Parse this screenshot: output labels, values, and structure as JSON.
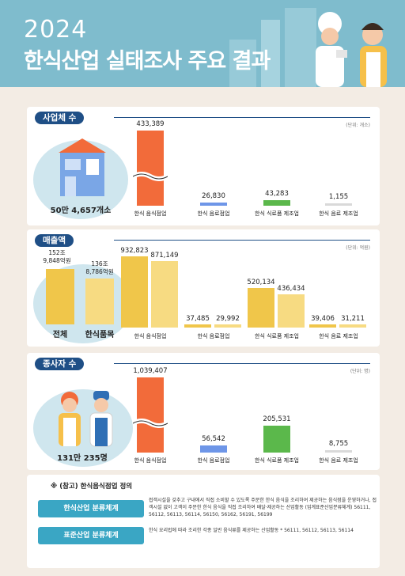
{
  "header": {
    "year": "2024",
    "title": "한식산업 실태조사 주요 결과"
  },
  "colors": {
    "header_bg": "#7fbccd",
    "section_blue": "#1f4f86",
    "bar_restaurant": "#f26b3a",
    "bar_beverage": "#6e96e8",
    "bar_manufacture": "#5bb84b",
    "bar_drink_mfg": "#d9d9d9",
    "sales_total": "#f0c64a",
    "sales_hansik": "#f7db82"
  },
  "chart_data": [
    {
      "type": "bar",
      "title": "사업체 수",
      "unit": "(단위: 개소)",
      "total": "50만 4,657개소",
      "categories": [
        "한식 음식점업",
        "한식 음료점업",
        "한식 식료품 제조업",
        "한식 음료 제조업"
      ],
      "values": [
        433389,
        26830,
        43283,
        1155
      ],
      "value_labels": [
        "433,389",
        "26,830",
        "43,283",
        "1,155"
      ],
      "broken_axis": true
    },
    {
      "type": "bar",
      "title": "매출액",
      "unit": "(단위: 억원)",
      "totals": [
        {
          "label": "전체",
          "value_line1": "152조",
          "value_line2": "9,848억원"
        },
        {
          "label": "한식품목",
          "value_line1": "136조",
          "value_line2": "8,786억원"
        }
      ],
      "categories": [
        "한식 음식점업",
        "한식 음료점업",
        "한식 식료품 제조업",
        "한식 음료 제조업"
      ],
      "series": [
        {
          "name": "전체",
          "values": [
            932823,
            37485,
            520134,
            39406
          ],
          "value_labels": [
            "932,823",
            "37,485",
            "520,134",
            "39,406"
          ]
        },
        {
          "name": "한식품목",
          "values": [
            871149,
            29992,
            436434,
            31211
          ],
          "value_labels": [
            "871,149",
            "29,992",
            "436,434",
            "31,211"
          ]
        }
      ]
    },
    {
      "type": "bar",
      "title": "종사자 수",
      "unit": "(단위: 명)",
      "total": "131만 235명",
      "categories": [
        "한식 음식점업",
        "한식 음료점업",
        "한식 식료품 제조업",
        "한식 음료 제조업"
      ],
      "values": [
        1039407,
        56542,
        205531,
        8755
      ],
      "value_labels": [
        "1,039,407",
        "56,542",
        "205,531",
        "8,755"
      ]
    }
  ],
  "reference": {
    "title": "※ (참고) 한식음식점업 정의",
    "items": [
      {
        "button": "한식산업 분류체계",
        "text": "접객시설을 갖추고 구내에서 직접 소비할 수 있도록 주문한 한식 음식을 조리하여 제공하는 음식점을 운영하거나, 접객시설 없이 고객이 주문한 한식 음식을 직접 조리하여 배달·제공하는 산업활동 (업계표준산업분류체계) 56111, 56112, 56113, 56114, 56150, 56162, 56191, 56199"
      },
      {
        "button": "표준산업 분류체계",
        "text": "한식 요리법에 따라 조리한 각종 일반 음식류를 제공하는 산업활동 * 56111, 56112, 56113, 56114"
      }
    ]
  }
}
